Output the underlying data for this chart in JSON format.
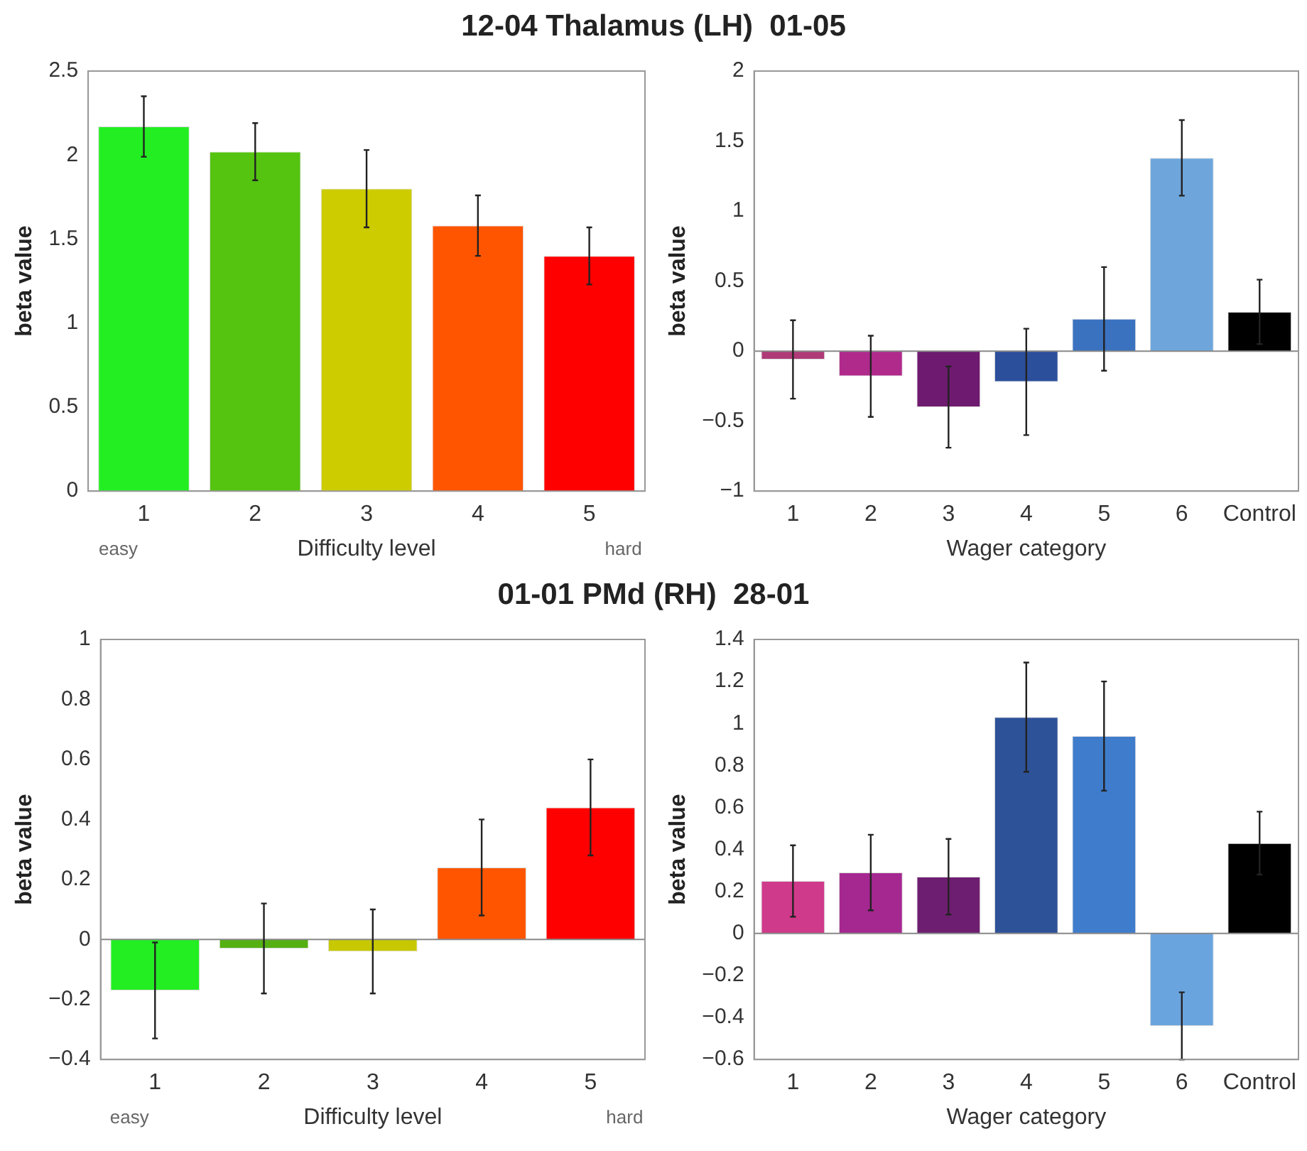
{
  "chart_data": [
    {
      "type": "bar",
      "title": "12-04 Thalamus (LH)  01-05",
      "xlabel": "Difficulty level",
      "ylabel": "beta value",
      "categories": [
        "1",
        "2",
        "3",
        "4",
        "5"
      ],
      "values": [
        2.17,
        2.02,
        1.8,
        1.58,
        1.4
      ],
      "errors": [
        0.18,
        0.17,
        0.23,
        0.18,
        0.17
      ],
      "colors": [
        "#22ee22",
        "#55c411",
        "#cccc00",
        "#ff5500",
        "#ff0000"
      ],
      "ylim": [
        0,
        2.5
      ],
      "yticks": [
        0,
        0.5,
        1,
        1.5,
        2,
        2.5
      ],
      "grid": false,
      "legend": false,
      "annotations": [
        "easy",
        "hard"
      ]
    },
    {
      "type": "bar",
      "xlabel": "Wager category",
      "ylabel": "beta value",
      "categories": [
        "1",
        "2",
        "3",
        "4",
        "5",
        "6",
        "Control"
      ],
      "values": [
        -0.06,
        -0.18,
        -0.4,
        -0.22,
        0.23,
        1.38,
        0.28
      ],
      "errors": [
        0.28,
        0.29,
        0.29,
        0.38,
        0.37,
        0.27,
        0.23
      ],
      "colors": [
        "#b03a78",
        "#b02a8c",
        "#6e1a70",
        "#2c4f9c",
        "#3a72c0",
        "#6ea6dc",
        "#000000"
      ],
      "ylim": [
        -1,
        2
      ],
      "yticks": [
        -1,
        -0.5,
        0,
        0.5,
        1,
        1.5,
        2
      ],
      "grid": false,
      "legend": false,
      "ref_lines": [
        {
          "axis": "y",
          "value": 0
        }
      ]
    },
    {
      "type": "bar",
      "title": "01-01 PMd (RH)  28-01",
      "xlabel": "Difficulty level",
      "ylabel": "beta value",
      "categories": [
        "1",
        "2",
        "3",
        "4",
        "5"
      ],
      "values": [
        -0.17,
        -0.03,
        -0.04,
        0.24,
        0.44
      ],
      "errors": [
        0.16,
        0.15,
        0.14,
        0.16,
        0.16
      ],
      "colors": [
        "#22ee22",
        "#55b011",
        "#c8c800",
        "#ff5500",
        "#ff0000"
      ],
      "ylim": [
        -0.4,
        1
      ],
      "yticks": [
        -0.4,
        -0.2,
        0,
        0.2,
        0.4,
        0.6,
        0.8,
        1
      ],
      "grid": false,
      "legend": false,
      "annotations": [
        "easy",
        "hard"
      ],
      "ref_lines": [
        {
          "axis": "y",
          "value": 0
        }
      ]
    },
    {
      "type": "bar",
      "xlabel": "Wager category",
      "ylabel": "beta value",
      "categories": [
        "1",
        "2",
        "3",
        "4",
        "5",
        "6",
        "Control"
      ],
      "values": [
        0.25,
        0.29,
        0.27,
        1.03,
        0.94,
        -0.44,
        0.43
      ],
      "errors": [
        0.17,
        0.18,
        0.18,
        0.26,
        0.26,
        0.16,
        0.15
      ],
      "colors": [
        "#d03a8a",
        "#a52890",
        "#6e1e70",
        "#2e5298",
        "#3f7ccc",
        "#6aa4de",
        "#000000"
      ],
      "ylim": [
        -0.6,
        1.4
      ],
      "yticks": [
        -0.6,
        -0.4,
        -0.2,
        0,
        0.2,
        0.4,
        0.6,
        0.8,
        1,
        1.2,
        1.4
      ],
      "grid": false,
      "legend": false,
      "ref_lines": [
        {
          "axis": "y",
          "value": 0
        }
      ]
    }
  ]
}
